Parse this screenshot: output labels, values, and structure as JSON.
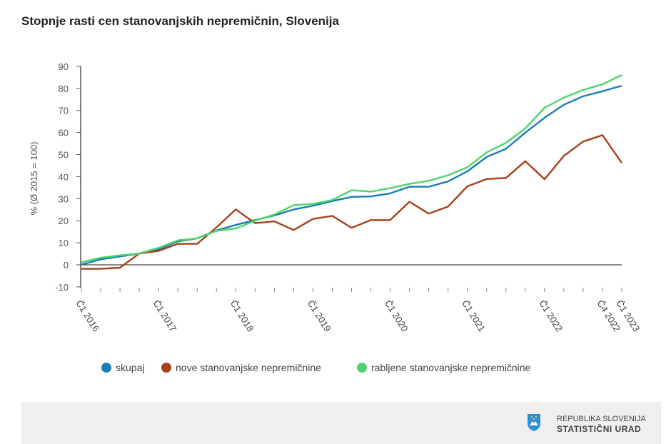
{
  "chart_data": {
    "type": "line",
    "title": "Stopnje rasti cen stanovanjskih nepremičnin, Slovenija",
    "ylabel": "% (Ø 2015 = 100)",
    "xlabel": "",
    "ylim": [
      -10,
      90
    ],
    "yticks": [
      -10,
      0,
      10,
      20,
      30,
      40,
      50,
      60,
      70,
      80,
      90
    ],
    "x": [
      "Č1 2016",
      "Č2 2016",
      "Č3 2016",
      "Č4 2016",
      "Č1 2017",
      "Č2 2017",
      "Č3 2017",
      "Č4 2017",
      "Č1 2018",
      "Č2 2018",
      "Č3 2018",
      "Č4 2018",
      "Č1 2019",
      "Č2 2019",
      "Č3 2019",
      "Č4 2019",
      "Č1 2020",
      "Č2 2020",
      "Č3 2020",
      "Č4 2020",
      "Č1 2021",
      "Č2 2021",
      "Č3 2021",
      "Č4 2021",
      "Č1 2022",
      "Č2 2022",
      "Č3 2022",
      "Č4 2022",
      "Č1 2023"
    ],
    "xtick_labels": [
      "Č1 2016",
      "Č1 2017",
      "Č1 2018",
      "Č1 2019",
      "Č1 2020",
      "Č1 2021",
      "Č1 2022",
      "Č4 2022",
      "Č1 2023"
    ],
    "grid": false,
    "legend_position": "bottom",
    "series": [
      {
        "name": "skupaj",
        "color": "#1a7db5",
        "values": [
          0.1,
          2.5,
          3.8,
          5.1,
          7,
          10.6,
          12,
          15.6,
          18.1,
          20.3,
          22.4,
          25.1,
          26.8,
          28.9,
          30.8,
          31,
          32.4,
          35.4,
          35.4,
          37.8,
          42.4,
          48.9,
          52.6,
          59.9,
          66.7,
          72.6,
          76.4,
          78.7,
          81.2
        ]
      },
      {
        "name": "nove stanovanjske nepremičnine",
        "color": "#a8401a",
        "values": [
          -1.8,
          -1.8,
          -1.3,
          5.1,
          6.3,
          9.5,
          9.5,
          17,
          25.1,
          18.9,
          19.7,
          15.8,
          20.8,
          22.2,
          16.8,
          20.3,
          20.3,
          28.6,
          23.2,
          26.4,
          35.6,
          38.9,
          39.4,
          47,
          38.8,
          49.4,
          55.9,
          58.8,
          46.2
        ]
      },
      {
        "name": "rabljene stanovanjske nepremičnine",
        "color": "#4fd46c",
        "values": [
          1.2,
          3.2,
          4.3,
          5.1,
          7.7,
          11.1,
          12,
          15.4,
          16.5,
          20,
          22.8,
          27.1,
          27.6,
          29.4,
          33.8,
          33.2,
          34.8,
          36.7,
          38.1,
          40.6,
          44.2,
          51,
          55.3,
          61.8,
          71.2,
          75.8,
          79.3,
          81.8,
          86.1
        ]
      }
    ]
  },
  "footer": {
    "logo_line1": "REPUBLIKA SLOVENIJA",
    "logo_line2": "STATISTIČNI URAD",
    "logo_icon": "slovenia-coat-of-arms-icon"
  }
}
